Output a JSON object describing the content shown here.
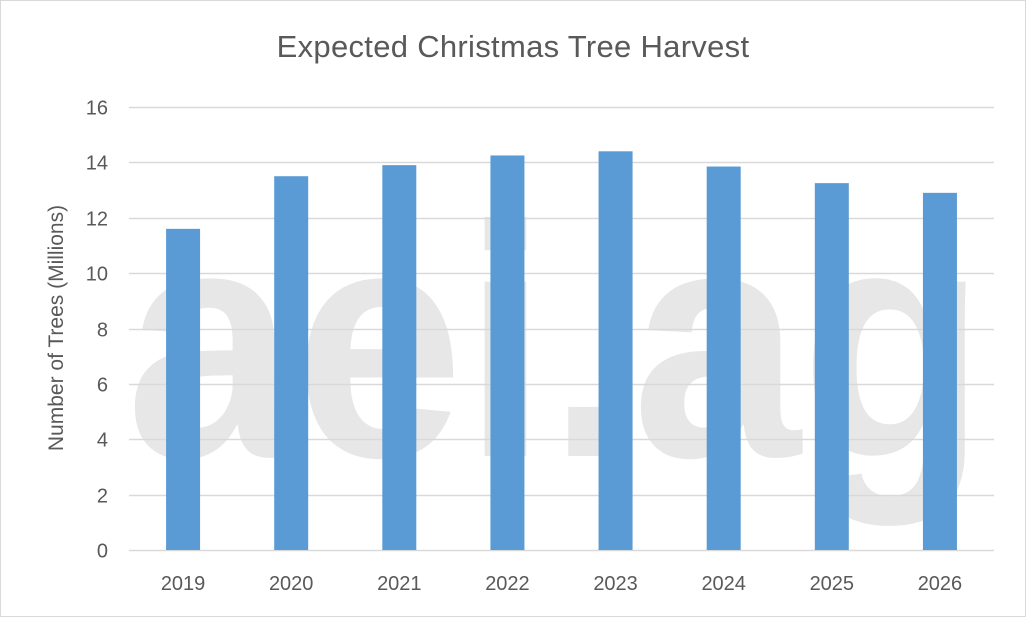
{
  "chart_data": {
    "type": "bar",
    "title": "Expected Christmas Tree Harvest",
    "xlabel": "",
    "ylabel": "Number of Trees (Millions)",
    "categories": [
      "2019",
      "2020",
      "2021",
      "2022",
      "2023",
      "2024",
      "2025",
      "2026"
    ],
    "values": [
      11.6,
      13.5,
      13.9,
      14.25,
      14.4,
      13.85,
      13.25,
      12.9
    ],
    "ylim": [
      0,
      16
    ],
    "yticks": [
      0,
      2,
      4,
      6,
      8,
      10,
      12,
      14,
      16
    ],
    "grid": true,
    "legend": "none",
    "bar_color": "#5b9bd5",
    "gridline_color": "#d9d9d9",
    "watermark": "aei.ag"
  }
}
